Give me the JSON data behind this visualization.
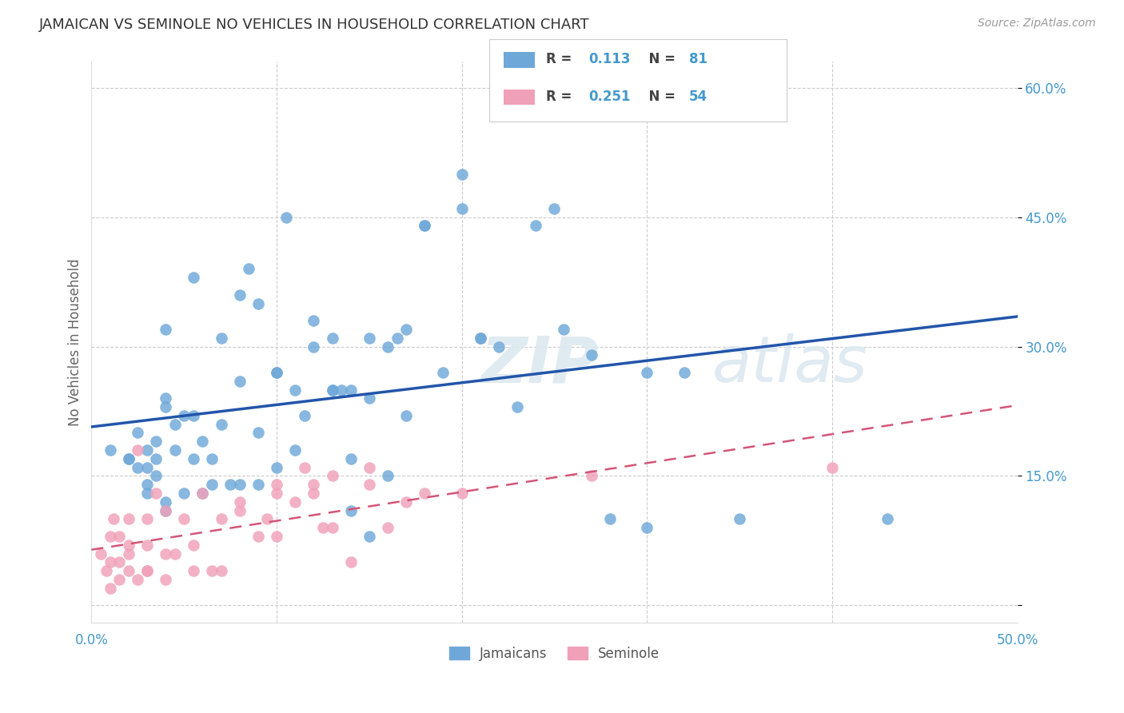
{
  "title": "JAMAICAN VS SEMINOLE NO VEHICLES IN HOUSEHOLD CORRELATION CHART",
  "source": "Source: ZipAtlas.com",
  "ylabel": "No Vehicles in Household",
  "xlim": [
    0.0,
    0.5
  ],
  "ylim": [
    -0.02,
    0.63
  ],
  "yticks": [
    0.0,
    0.15,
    0.3,
    0.45,
    0.6
  ],
  "ytick_labels": [
    "",
    "15.0%",
    "30.0%",
    "45.0%",
    "60.0%"
  ],
  "xticks": [
    0.0,
    0.1,
    0.2,
    0.3,
    0.4,
    0.5
  ],
  "xtick_labels": [
    "0.0%",
    "",
    "",
    "",
    "",
    "50.0%"
  ],
  "legend_r_jamaican": "0.113",
  "legend_n_jamaican": "81",
  "legend_r_seminole": "0.251",
  "legend_n_seminole": "54",
  "blue_color": "#6ea8d8",
  "pink_color": "#f0a0b8",
  "blue_line_color": "#2255aa",
  "pink_line_color": "#d45577",
  "watermark_zip": "ZIP",
  "watermark_atlas": "atlas",
  "background_color": "#ffffff",
  "jamaican_x": [
    0.01,
    0.02,
    0.02,
    0.025,
    0.025,
    0.03,
    0.03,
    0.03,
    0.03,
    0.035,
    0.035,
    0.035,
    0.04,
    0.04,
    0.04,
    0.04,
    0.04,
    0.045,
    0.045,
    0.05,
    0.05,
    0.055,
    0.055,
    0.055,
    0.06,
    0.06,
    0.065,
    0.065,
    0.07,
    0.07,
    0.075,
    0.08,
    0.08,
    0.08,
    0.085,
    0.09,
    0.09,
    0.09,
    0.1,
    0.1,
    0.1,
    0.105,
    0.11,
    0.11,
    0.115,
    0.12,
    0.12,
    0.13,
    0.13,
    0.13,
    0.135,
    0.14,
    0.14,
    0.14,
    0.15,
    0.15,
    0.15,
    0.16,
    0.16,
    0.165,
    0.17,
    0.17,
    0.18,
    0.18,
    0.19,
    0.2,
    0.2,
    0.21,
    0.21,
    0.22,
    0.23,
    0.24,
    0.25,
    0.255,
    0.27,
    0.28,
    0.3,
    0.3,
    0.32,
    0.35,
    0.43
  ],
  "jamaican_y": [
    0.18,
    0.17,
    0.17,
    0.16,
    0.2,
    0.14,
    0.16,
    0.13,
    0.18,
    0.15,
    0.19,
    0.17,
    0.11,
    0.23,
    0.24,
    0.32,
    0.12,
    0.18,
    0.21,
    0.13,
    0.22,
    0.38,
    0.22,
    0.17,
    0.19,
    0.13,
    0.14,
    0.17,
    0.21,
    0.31,
    0.14,
    0.36,
    0.14,
    0.26,
    0.39,
    0.14,
    0.2,
    0.35,
    0.27,
    0.16,
    0.27,
    0.45,
    0.18,
    0.25,
    0.22,
    0.33,
    0.3,
    0.25,
    0.31,
    0.25,
    0.25,
    0.17,
    0.25,
    0.11,
    0.24,
    0.31,
    0.08,
    0.3,
    0.15,
    0.31,
    0.32,
    0.22,
    0.44,
    0.44,
    0.27,
    0.46,
    0.5,
    0.31,
    0.31,
    0.3,
    0.23,
    0.44,
    0.46,
    0.32,
    0.29,
    0.1,
    0.09,
    0.27,
    0.27,
    0.1,
    0.1
  ],
  "seminole_x": [
    0.005,
    0.008,
    0.01,
    0.01,
    0.01,
    0.012,
    0.015,
    0.015,
    0.015,
    0.02,
    0.02,
    0.02,
    0.02,
    0.025,
    0.025,
    0.03,
    0.03,
    0.03,
    0.03,
    0.035,
    0.04,
    0.04,
    0.04,
    0.045,
    0.05,
    0.055,
    0.055,
    0.06,
    0.065,
    0.07,
    0.07,
    0.08,
    0.08,
    0.09,
    0.095,
    0.1,
    0.1,
    0.1,
    0.11,
    0.115,
    0.12,
    0.12,
    0.125,
    0.13,
    0.13,
    0.14,
    0.15,
    0.15,
    0.16,
    0.17,
    0.18,
    0.2,
    0.27,
    0.4
  ],
  "seminole_y": [
    0.06,
    0.04,
    0.05,
    0.08,
    0.02,
    0.1,
    0.03,
    0.08,
    0.05,
    0.06,
    0.04,
    0.1,
    0.07,
    0.03,
    0.18,
    0.04,
    0.1,
    0.07,
    0.04,
    0.13,
    0.03,
    0.06,
    0.11,
    0.06,
    0.1,
    0.07,
    0.04,
    0.13,
    0.04,
    0.1,
    0.04,
    0.11,
    0.12,
    0.08,
    0.1,
    0.13,
    0.08,
    0.14,
    0.12,
    0.16,
    0.14,
    0.13,
    0.09,
    0.15,
    0.09,
    0.05,
    0.14,
    0.16,
    0.09,
    0.12,
    0.13,
    0.13,
    0.15,
    0.16
  ]
}
